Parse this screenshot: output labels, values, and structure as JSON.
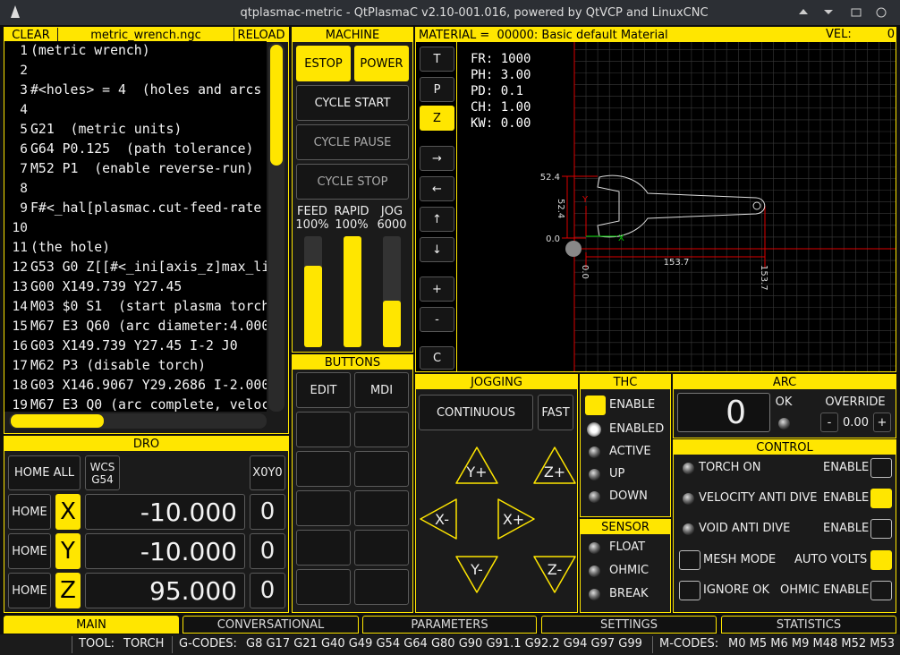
{
  "window_title": "qtplasmac-metric - QtPlasmaC v2.10-001.016, powered by QtVCP and LinuxCNC",
  "gcode": {
    "clear": "CLEAR",
    "file": "metric_wrench.ngc",
    "reload": "RELOAD",
    "lines": [
      {
        "number": 1,
        "text": "(metric wrench)"
      },
      {
        "number": 2
      },
      {
        "number": 3,
        "text": "#<holes> = 4  (holes and arcs"
      },
      {
        "number": 4
      },
      {
        "number": 5,
        "text": "G21  (metric units)"
      },
      {
        "number": 6,
        "text": "G64 P0.125  (path tolerance)"
      },
      {
        "number": 7,
        "text": "M52 P1  (enable reverse-run)"
      },
      {
        "number": 8
      },
      {
        "number": 9,
        "text": "F#<_hal[plasmac.cut-feed-rate"
      },
      {
        "number": 10
      },
      {
        "number": 11,
        "text": "(the hole)"
      },
      {
        "number": 12,
        "text": "G53 G0 Z[[#<_ini[axis_z]max_li"
      },
      {
        "number": 13,
        "text": "G00 X149.739 Y27.45"
      },
      {
        "number": 14,
        "text": "M03 $0 S1  (start plasma torch"
      },
      {
        "number": 15,
        "text": "M67 E3 Q60 (arc diameter:4.000"
      },
      {
        "number": 16,
        "text": "G03 X149.739 Y27.45 I-2 J0"
      },
      {
        "number": 17,
        "text": "M62 P3 (disable torch)"
      },
      {
        "number": 18,
        "text": "G03 X146.9067 Y29.2686 I-2.000"
      },
      {
        "number": 19,
        "text": "M67 E3 Q0 (arc complete, veloc"
      }
    ]
  },
  "machine": {
    "title": "MACHINE",
    "estop": "ESTOP",
    "power": "POWER",
    "cycle_start": "CYCLE START",
    "cycle_pause": "CYCLE PAUSE",
    "cycle_stop": "CYCLE STOP",
    "sliders": [
      {
        "label": "FEED",
        "value": "100%"
      },
      {
        "label": "RAPID",
        "value": "100%"
      },
      {
        "label": "JOG",
        "value": "6000"
      }
    ]
  },
  "buttons": {
    "title": "BUTTONS",
    "edit": "EDIT",
    "mdi": "MDI"
  },
  "preview": {
    "material": "MATERIAL =  00000: Basic default Material",
    "vel_label": "VEL:",
    "vel": "0",
    "view_buttons": [
      "T",
      "P",
      "Z",
      "→",
      "←",
      "↑",
      "↓",
      "+",
      "-",
      "C"
    ],
    "overlay": [
      "FR: 1000",
      "PH: 3.00",
      "PD: 0.1",
      "CH: 1.00",
      "KW: 0.00"
    ],
    "dims": {
      "y_top": "52.4",
      "y_size": "52.4",
      "y_zero": "0.0",
      "x_zero": "0.0",
      "x_size": "153.7",
      "x_end": "153.7"
    },
    "axis_y": "Y",
    "axis_x": "X"
  },
  "dro": {
    "title": "DRO",
    "home_all": "HOME ALL",
    "wcs": "WCS",
    "wcs_value": "G54",
    "zero": "X0Y0",
    "axes": [
      {
        "home": "HOME",
        "axis": "X",
        "value": "-10.000",
        "offset": "0"
      },
      {
        "home": "HOME",
        "axis": "Y",
        "value": "-10.000",
        "offset": "0"
      },
      {
        "home": "HOME",
        "axis": "Z",
        "value": "95.000",
        "offset": "0"
      }
    ]
  },
  "jogging": {
    "title": "JOGGING",
    "mode": "CONTINUOUS",
    "fast": "FAST",
    "y_plus": "Y+",
    "z_plus": "Z+",
    "x_minus": "X-",
    "x_plus": "X+",
    "y_minus": "Y-",
    "z_minus": "Z-"
  },
  "thc": {
    "title": "THC",
    "enable": "ENABLE",
    "enabled": "ENABLED",
    "active": "ACTIVE",
    "up": "UP",
    "down": "DOWN"
  },
  "sensor": {
    "title": "SENSOR",
    "float": "FLOAT",
    "ohmic": "OHMIC",
    "break": "BREAK"
  },
  "arc": {
    "title": "ARC",
    "voltage": "0",
    "ok": "OK",
    "override": "OVERRIDE",
    "minus": "-",
    "override_value": "0.00",
    "plus": "+"
  },
  "control": {
    "title": "CONTROL",
    "torch_on": "TORCH ON",
    "torch_enable": "ENABLE",
    "vad": "VELOCITY ANTI DIVE",
    "vad_enable": "ENABLE",
    "void": "VOID ANTI DIVE",
    "void_enable": "ENABLE",
    "mesh": "MESH MODE",
    "auto_volts": "AUTO VOLTS",
    "ignore_ok": "IGNORE OK",
    "ohmic_enable": "OHMIC ENABLE"
  },
  "tabs": [
    "MAIN",
    "CONVERSATIONAL",
    "PARAMETERS",
    "SETTINGS",
    "STATISTICS"
  ],
  "status": {
    "tool_label": "TOOL:",
    "tool": "TORCH",
    "gcodes_label": "G-CODES:",
    "gcodes": "G8 G17 G21 G40 G49 G54 G64 G80 G90 G91.1 G92.2 G94 G97 G99",
    "mcodes_label": "M-CODES:",
    "mcodes": "M0 M5 M6 M9 M48 M52 M53"
  }
}
